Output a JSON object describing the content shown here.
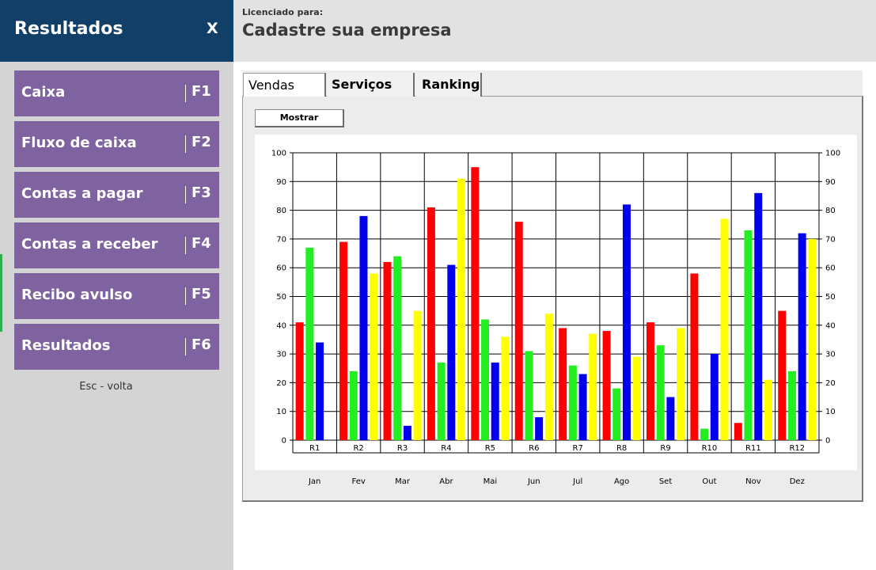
{
  "sidebar": {
    "title": "Resultados",
    "close_label": "X",
    "items": [
      {
        "label": "Caixa",
        "key": "F1"
      },
      {
        "label": "Fluxo de caixa",
        "key": "F2"
      },
      {
        "label": "Contas a pagar",
        "key": "F3"
      },
      {
        "label": "Contas a receber",
        "key": "F4"
      },
      {
        "label": "Recibo avulso",
        "key": "F5"
      },
      {
        "label": "Resultados",
        "key": "F6"
      }
    ],
    "hint": "Esc - volta"
  },
  "header": {
    "license_label": "Licenciado para:",
    "company": "Cadastre sua empresa"
  },
  "tabs": [
    {
      "label": "Vendas",
      "active": true
    },
    {
      "label": "Serviços",
      "active": false
    },
    {
      "label": "Ranking",
      "active": false
    }
  ],
  "show_button": "Mostrar",
  "colors": {
    "sidebar_header": "#123f68",
    "menu_item": "#7f63a1",
    "series": [
      "#ff0000",
      "#22ee22",
      "#0000ee",
      "#ffff00"
    ]
  },
  "chart_data": {
    "type": "bar",
    "categories": [
      "R1",
      "R2",
      "R3",
      "R4",
      "R5",
      "R6",
      "R7",
      "R8",
      "R9",
      "R10",
      "R11",
      "R12"
    ],
    "months": [
      "Jan",
      "Fev",
      "Mar",
      "Abr",
      "Mai",
      "Jun",
      "Jul",
      "Ago",
      "Set",
      "Out",
      "Nov",
      "Dez"
    ],
    "series": [
      {
        "color": "#ff0000",
        "values": [
          41,
          69,
          62,
          81,
          95,
          76,
          39,
          38,
          41,
          58,
          6,
          45
        ]
      },
      {
        "color": "#22ee22",
        "values": [
          67,
          24,
          64,
          27,
          42,
          31,
          26,
          18,
          33,
          4,
          73,
          24
        ]
      },
      {
        "color": "#0000ee",
        "values": [
          34,
          78,
          5,
          61,
          27,
          8,
          23,
          82,
          15,
          30,
          86,
          72
        ]
      },
      {
        "color": "#ffff00",
        "values": [
          null,
          58,
          45,
          91,
          36,
          44,
          37,
          29,
          39,
          77,
          21,
          70
        ]
      }
    ],
    "ylim": [
      0,
      100
    ],
    "yticks": [
      0,
      10,
      20,
      30,
      40,
      50,
      60,
      70,
      80,
      90,
      100
    ],
    "y_axis_both_sides": true,
    "grid": true,
    "legend": "none"
  }
}
